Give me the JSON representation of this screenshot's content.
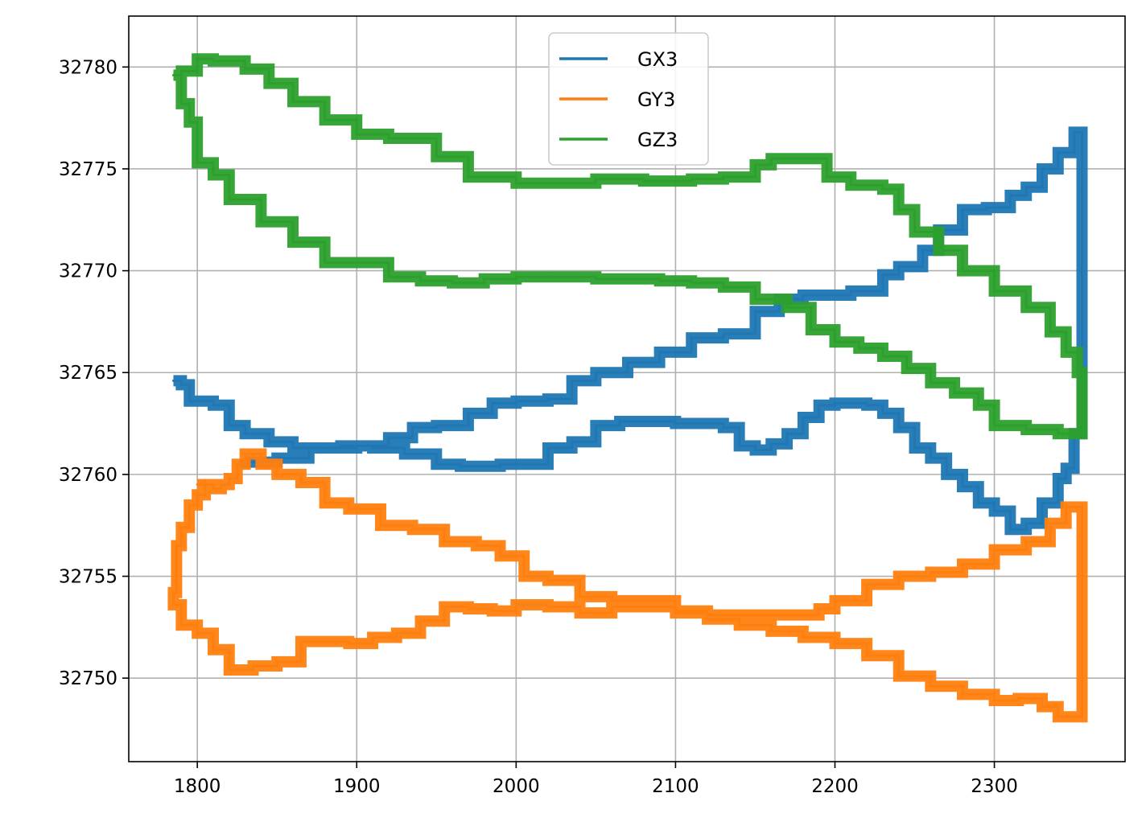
{
  "chart_data": {
    "type": "line",
    "title": "",
    "xlabel": "",
    "ylabel": "",
    "xlim": [
      1757,
      2382
    ],
    "ylim": [
      32745.9,
      32782.5
    ],
    "xticks": [
      1800,
      1900,
      2000,
      2100,
      2200,
      2300
    ],
    "yticks": [
      32750,
      32755,
      32760,
      32765,
      32770,
      32775,
      32780
    ],
    "grid": true,
    "legend_position": "top-center",
    "series": [
      {
        "name": "GX3",
        "color": "#1f77b4",
        "x": [
          1785,
          1790,
          1795,
          1810,
          1820,
          1830,
          1845,
          1860,
          1880,
          1900,
          1920,
          1935,
          1950,
          1970,
          1985,
          2000,
          2020,
          2035,
          2050,
          2070,
          2090,
          2110,
          2130,
          2150,
          2165,
          2180,
          2195,
          2210,
          2230,
          2240,
          2255,
          2265,
          2280,
          2295,
          2310,
          2320,
          2330,
          2340,
          2350,
          2355,
          2355,
          2350,
          2345,
          2340,
          2330,
          2320,
          2310,
          2300,
          2290,
          2280,
          2270,
          2260,
          2250,
          2240,
          2230,
          2220,
          2210,
          2200,
          2190,
          2180,
          2170,
          2160,
          2150,
          2140,
          2130,
          2120,
          2100,
          2080,
          2065,
          2050,
          2035,
          2020,
          2000,
          1990,
          1980,
          1965,
          1950,
          1930,
          1910,
          1890,
          1870,
          1850,
          1840,
          1830
        ],
        "y": [
          32764.6,
          32764.4,
          32763.6,
          32763.4,
          32762.4,
          32762.0,
          32761.6,
          32761.3,
          32761.3,
          32761.4,
          32761.8,
          32762.3,
          32762.4,
          32763.0,
          32763.5,
          32763.6,
          32763.7,
          32764.6,
          32765.0,
          32765.5,
          32766.0,
          32766.7,
          32766.9,
          32768.0,
          32768.6,
          32768.8,
          32768.8,
          32769.0,
          32769.8,
          32770.2,
          32771.0,
          32772.0,
          32773.0,
          32773.1,
          32773.7,
          32774.1,
          32775.0,
          32775.8,
          32776.8,
          32776.5,
          32762.0,
          32760.3,
          32759.8,
          32758.6,
          32757.6,
          32757.3,
          32758.2,
          32758.6,
          32759.4,
          32760.0,
          32760.8,
          32761.3,
          32762.3,
          32763.0,
          32763.4,
          32763.5,
          32763.5,
          32763.4,
          32762.8,
          32762.0,
          32761.5,
          32761.2,
          32761.4,
          32762.3,
          32762.5,
          32762.5,
          32762.6,
          32762.6,
          32762.4,
          32761.6,
          32761.3,
          32760.5,
          32760.5,
          32760.4,
          32760.4,
          32760.5,
          32761.0,
          32761.3,
          32761.4,
          32761.3,
          32760.8,
          32760.6,
          32760.6,
          32760.7
        ]
      },
      {
        "name": "GY3",
        "color": "#ff7f0e",
        "x": [
          1800,
          1810,
          1815,
          1820,
          1825,
          1830,
          1840,
          1850,
          1865,
          1880,
          1895,
          1915,
          1935,
          1955,
          1975,
          1990,
          2005,
          2020,
          2040,
          2060,
          2080,
          2100,
          2120,
          2150,
          2170,
          2190,
          2200,
          2220,
          2240,
          2260,
          2280,
          2300,
          2320,
          2335,
          2345,
          2355,
          2355,
          2350,
          2340,
          2330,
          2315,
          2300,
          2280,
          2260,
          2240,
          2220,
          2200,
          2180,
          2160,
          2140,
          2120,
          2100,
          2080,
          2060,
          2040,
          2020,
          2000,
          1985,
          1970,
          1955,
          1940,
          1925,
          1910,
          1895,
          1880,
          1865,
          1850,
          1835,
          1820,
          1810,
          1800,
          1790,
          1785,
          1787,
          1790,
          1795,
          1800,
          1805
        ],
        "y": [
          32759.5,
          32759.3,
          32759.5,
          32759.8,
          32760.5,
          32761.0,
          32760.5,
          32760.0,
          32759.6,
          32758.6,
          32758.3,
          32757.5,
          32757.3,
          32756.7,
          32756.5,
          32756.0,
          32755.0,
          32754.8,
          32754.0,
          32753.8,
          32753.8,
          32753.3,
          32753.1,
          32753.1,
          32753.1,
          32753.4,
          32753.8,
          32754.6,
          32755.0,
          32755.2,
          32755.6,
          32756.3,
          32756.7,
          32757.6,
          32758.4,
          32758.4,
          32748.1,
          32748.1,
          32748.6,
          32749.0,
          32748.9,
          32749.2,
          32749.6,
          32750.1,
          32751.1,
          32751.7,
          32752.0,
          32752.3,
          32752.6,
          32752.9,
          32753.2,
          32753.5,
          32753.5,
          32753.2,
          32753.5,
          32753.6,
          32753.3,
          32753.4,
          32753.5,
          32752.8,
          32752.2,
          32752.0,
          32751.7,
          32751.8,
          32751.8,
          32750.8,
          32750.6,
          32750.4,
          32751.4,
          32752.2,
          32752.6,
          32753.6,
          32754.2,
          32756.5,
          32757.4,
          32758.5,
          32759.0,
          32759.7
        ]
      },
      {
        "name": "GZ3",
        "color": "#2ca02c",
        "x": [
          1785,
          1790,
          1800,
          1810,
          1830,
          1845,
          1860,
          1880,
          1900,
          1920,
          1950,
          1970,
          2000,
          2020,
          2050,
          2080,
          2110,
          2130,
          2150,
          2160,
          2180,
          2195,
          2210,
          2230,
          2240,
          2250,
          2265,
          2280,
          2300,
          2320,
          2335,
          2345,
          2352,
          2355,
          2355,
          2350,
          2340,
          2330,
          2320,
          2300,
          2290,
          2275,
          2260,
          2245,
          2230,
          2215,
          2200,
          2185,
          2170,
          2150,
          2130,
          2110,
          2090,
          2070,
          2050,
          2020,
          2000,
          1980,
          1960,
          1940,
          1920,
          1900,
          1880,
          1860,
          1840,
          1820,
          1810,
          1800,
          1795,
          1790
        ],
        "y": [
          32779.6,
          32779.8,
          32780.4,
          32780.3,
          32779.9,
          32779.2,
          32778.3,
          32777.4,
          32776.7,
          32776.5,
          32775.6,
          32774.6,
          32774.3,
          32774.3,
          32774.5,
          32774.4,
          32774.5,
          32774.6,
          32775.2,
          32775.5,
          32775.5,
          32774.6,
          32774.2,
          32774.0,
          32773.0,
          32771.9,
          32771.0,
          32770.0,
          32769.0,
          32768.2,
          32767.0,
          32766.0,
          32765.0,
          32765.0,
          32762.0,
          32762.0,
          32762.2,
          32762.2,
          32762.4,
          32763.4,
          32764.0,
          32764.5,
          32765.2,
          32765.8,
          32766.2,
          32766.5,
          32767.1,
          32768.2,
          32768.6,
          32769.2,
          32769.4,
          32769.5,
          32769.6,
          32769.6,
          32769.7,
          32769.7,
          32769.6,
          32769.4,
          32769.5,
          32769.7,
          32770.4,
          32770.4,
          32771.4,
          32772.4,
          32773.5,
          32774.7,
          32775.3,
          32777.3,
          32778.2,
          32779.6
        ]
      }
    ]
  }
}
